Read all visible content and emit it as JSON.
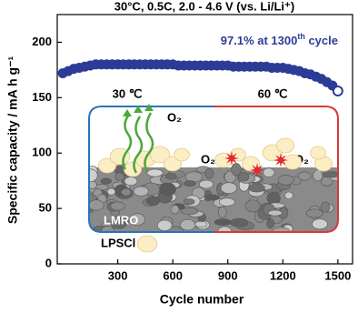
{
  "chart_data": {
    "type": "scatter",
    "title": "30°C, 0.5C, 2.0 - 4.6 V  (vs. Li/Li⁺)",
    "annotation": [
      "97.1% at 1300",
      "th",
      " cycle"
    ],
    "xlabel": "Cycle number",
    "ylabel": "Specific capacity / mA h g⁻¹",
    "x": [
      0,
      30,
      60,
      90,
      120,
      150,
      180,
      210,
      240,
      270,
      300,
      330,
      360,
      390,
      420,
      450,
      480,
      510,
      540,
      570,
      600,
      630,
      660,
      690,
      720,
      750,
      780,
      810,
      840,
      870,
      900,
      930,
      960,
      990,
      1020,
      1050,
      1080,
      1110,
      1140,
      1170,
      1200,
      1230,
      1260,
      1290,
      1320,
      1350,
      1380,
      1410,
      1440,
      1470,
      1500
    ],
    "series": [
      {
        "color": "#2c3c96",
        "values": [
          172,
          174,
          176,
          177,
          178,
          179,
          180,
          180,
          180,
          180,
          180,
          180,
          180,
          180,
          180,
          180,
          180,
          180,
          180,
          180,
          180,
          179,
          179,
          179,
          179,
          179,
          179,
          179,
          179,
          179,
          179,
          178,
          178,
          178,
          178,
          178,
          178,
          178,
          177,
          177,
          177,
          176,
          175,
          174,
          172,
          171,
          169,
          167,
          164,
          161,
          156
        ]
      }
    ],
    "xlim": [
      -30,
      1580
    ],
    "ylim": [
      0,
      225
    ],
    "xticks": [
      300,
      600,
      900,
      1200,
      1500
    ],
    "yticks": [
      0,
      50,
      100,
      150,
      200
    ],
    "inset_labels": {
      "left_temp": "30 ℃",
      "right_temp": "60 ℃",
      "gas_left": "O₂",
      "gas_mid": "O₂",
      "gas_right": "O₂",
      "cathode": "LMRO",
      "electrolyte": "LPSCl"
    }
  }
}
